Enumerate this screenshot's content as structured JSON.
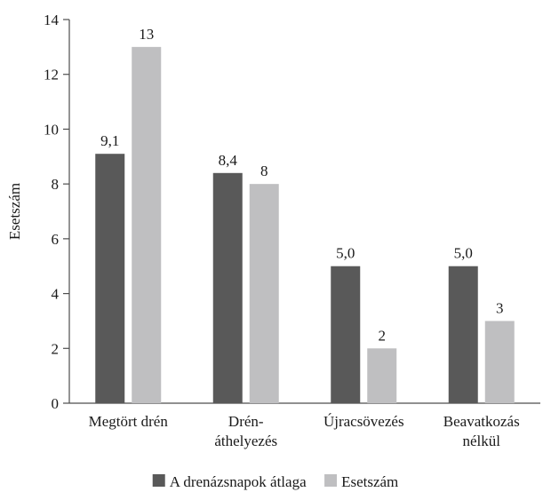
{
  "chart_data": {
    "type": "bar",
    "ylabel": "Esetszám",
    "xlabel": "",
    "ylim": [
      0,
      14
    ],
    "yticks": [
      0,
      2,
      4,
      6,
      8,
      10,
      12,
      14
    ],
    "grid": false,
    "legend_position": "bottom",
    "categories": [
      [
        "Megtört drén"
      ],
      [
        "Drén-",
        "áthelyezés"
      ],
      [
        "Újracsövezés"
      ],
      [
        "Beavatkozás",
        "nélkül"
      ]
    ],
    "series": [
      {
        "name": "A drenázsnapok átlaga",
        "color": "#595959",
        "values": [
          9.1,
          8.4,
          5.0,
          5.0
        ],
        "labels": [
          "9,1",
          "8,4",
          "5,0",
          "5,0"
        ]
      },
      {
        "name": "Esetszám",
        "color": "#bfbfc1",
        "values": [
          13,
          8,
          2,
          3
        ],
        "labels": [
          "13",
          "8",
          "2",
          "3"
        ]
      }
    ]
  }
}
